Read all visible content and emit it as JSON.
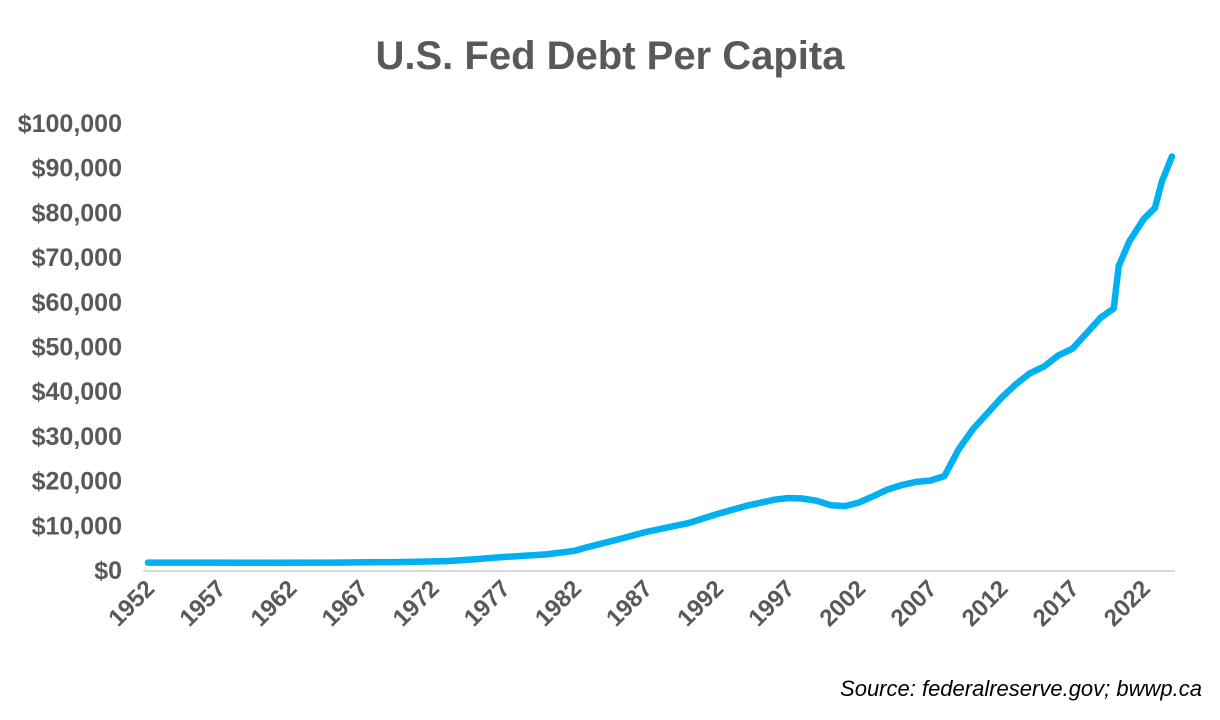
{
  "chart_data": {
    "type": "line",
    "title": "U.S. Fed Debt Per Capita",
    "source": "Source: federalreserve.gov; bwwp.ca",
    "xlabel": "",
    "ylabel": "",
    "ylim": [
      0,
      100000
    ],
    "xlim": [
      1952,
      2024
    ],
    "y_ticks": [
      0,
      10000,
      20000,
      30000,
      40000,
      50000,
      60000,
      70000,
      80000,
      90000,
      100000
    ],
    "y_tick_labels": [
      "$0",
      "$10,000",
      "$20,000",
      "$30,000",
      "$40,000",
      "$50,000",
      "$60,000",
      "$70,000",
      "$80,000",
      "$90,000",
      "$100,000"
    ],
    "x_tick_labels": [
      "1952",
      "1957",
      "1962",
      "1967",
      "1972",
      "1977",
      "1982",
      "1987",
      "1992",
      "1997",
      "2002",
      "2007",
      "2012",
      "2017",
      "2022"
    ],
    "grid": false,
    "legend": "none",
    "color": "#00B0F0",
    "series": [
      {
        "name": "Fed Debt Per Capita",
        "x": [
          1952,
          1955,
          1960,
          1965,
          1970,
          1973,
          1975,
          1977,
          1980,
          1982,
          1983,
          1985,
          1987,
          1990,
          1992,
          1994,
          1996,
          1997,
          1998,
          1999,
          2000,
          2001,
          2002,
          2003,
          2004,
          2005,
          2006,
          2007,
          2008,
          2009,
          2010,
          2011,
          2012,
          2013,
          2014,
          2015,
          2016,
          2017,
          2018,
          2019,
          2019.9,
          2020.25,
          2021,
          2022,
          2022.8,
          2023.3,
          2024
        ],
        "values": [
          1650,
          1650,
          1600,
          1650,
          1800,
          2000,
          2400,
          2900,
          3500,
          4300,
          5200,
          6800,
          8500,
          10500,
          12500,
          14300,
          15700,
          16100,
          16000,
          15500,
          14500,
          14300,
          15100,
          16500,
          18000,
          19000,
          19700,
          20000,
          21000,
          27000,
          31500,
          35000,
          38500,
          41500,
          44000,
          45500,
          48000,
          49500,
          53000,
          56500,
          58500,
          68000,
          73500,
          78500,
          81000,
          87000,
          92500
        ]
      }
    ]
  }
}
